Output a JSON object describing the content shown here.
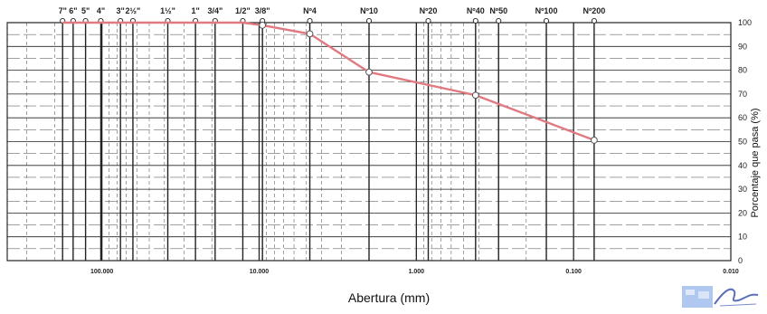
{
  "chart_data": {
    "type": "line",
    "title": "",
    "xlabel": "Abertura (mm)",
    "ylabel": "Porcentaje que pasa (%)",
    "x_scale": "log",
    "x_reversed": true,
    "xlim": [
      0.01,
      400
    ],
    "ylim": [
      0,
      100
    ],
    "x_tick_labels": [
      {
        "value": 100,
        "label": "100.000"
      },
      {
        "value": 10,
        "label": "10.000"
      },
      {
        "value": 1,
        "label": "1.000"
      },
      {
        "value": 0.1,
        "label": "0.100"
      },
      {
        "value": 0.01,
        "label": "0.010"
      }
    ],
    "y_ticks": [
      0,
      10,
      20,
      30,
      40,
      50,
      60,
      70,
      80,
      90,
      100
    ],
    "sieves": [
      {
        "label": "7\"",
        "opening": 177.8
      },
      {
        "label": "6\"",
        "opening": 152.4
      },
      {
        "label": "5\"",
        "opening": 127.0
      },
      {
        "label": "4\"",
        "opening": 101.6
      },
      {
        "label": "3\"",
        "opening": 76.2
      },
      {
        "label": "2½\"",
        "opening": 63.5
      },
      {
        "label": "1½\"",
        "opening": 38.1
      },
      {
        "label": "1\"",
        "opening": 25.4
      },
      {
        "label": "3/4\"",
        "opening": 19.05
      },
      {
        "label": "1/2\"",
        "opening": 12.7
      },
      {
        "label": "3/8\"",
        "opening": 9.525
      },
      {
        "label": "Nº4",
        "opening": 4.76
      },
      {
        "label": "Nº10",
        "opening": 2.0
      },
      {
        "label": "Nº20",
        "opening": 0.84
      },
      {
        "label": "Nº40",
        "opening": 0.42
      },
      {
        "label": "Nº50",
        "opening": 0.3
      },
      {
        "label": "Nº100",
        "opening": 0.149
      },
      {
        "label": "Nº200",
        "opening": 0.074
      }
    ],
    "series": [
      {
        "x": [
          177.8,
          152.4,
          127.0,
          101.6,
          76.2,
          63.5,
          38.1,
          25.4,
          19.05,
          12.7,
          9.525,
          4.76,
          2.0,
          0.42,
          0.074
        ],
        "y": [
          100,
          100,
          100,
          100,
          100,
          100,
          100,
          100,
          100,
          100,
          98.9,
          95.3,
          79.2,
          69.5,
          50.6
        ]
      }
    ],
    "colors": {
      "line": "#e07a80",
      "grid_major": "#222222",
      "grid_minor": "#444444",
      "marker_fill": "#ffffff"
    },
    "grid": true,
    "markers": "open-circle"
  },
  "stamp": {
    "icon": "signature-stamp-icon",
    "color": "#6a8fd8"
  }
}
